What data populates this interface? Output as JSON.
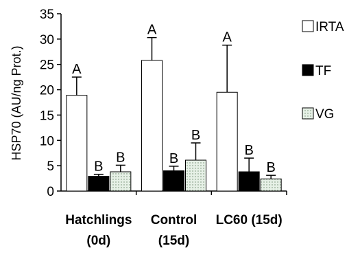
{
  "chart_data": {
    "type": "bar",
    "title": "",
    "xlabel": "",
    "ylabel": "HSP70 (AU/ng Prot.)",
    "ylim": [
      0,
      35
    ],
    "yticks": [
      0,
      5,
      10,
      15,
      20,
      25,
      30,
      35
    ],
    "grid": false,
    "legend_position": "right",
    "categories": [
      {
        "line1": "Hatchlings",
        "line2": "(0d)"
      },
      {
        "line1": "Control",
        "line2": "(15d)"
      },
      {
        "line1": "LC60 (15d)",
        "line2": ""
      }
    ],
    "series": [
      {
        "name": "IRTA",
        "fill": "white",
        "values": [
          18.9,
          25.8,
          19.5
        ],
        "errors": [
          3.6,
          4.5,
          9.3
        ],
        "labels": [
          "A",
          "A",
          "A"
        ]
      },
      {
        "name": "TF",
        "fill": "black",
        "values": [
          2.9,
          4.0,
          3.8
        ],
        "errors": [
          0.4,
          0.9,
          2.7
        ],
        "labels": [
          "B",
          "B",
          "B"
        ]
      },
      {
        "name": "VG",
        "fill": "dotted",
        "values": [
          3.8,
          6.1,
          2.4
        ],
        "errors": [
          1.3,
          3.4,
          0.7
        ],
        "labels": [
          "B",
          "B",
          "B"
        ]
      }
    ]
  },
  "colors": {
    "axis": "#000000",
    "bar_black": "#000000",
    "bar_white": "#ffffff",
    "dot_fill": "#e6f0e6",
    "dot": "#6e8a6e"
  }
}
